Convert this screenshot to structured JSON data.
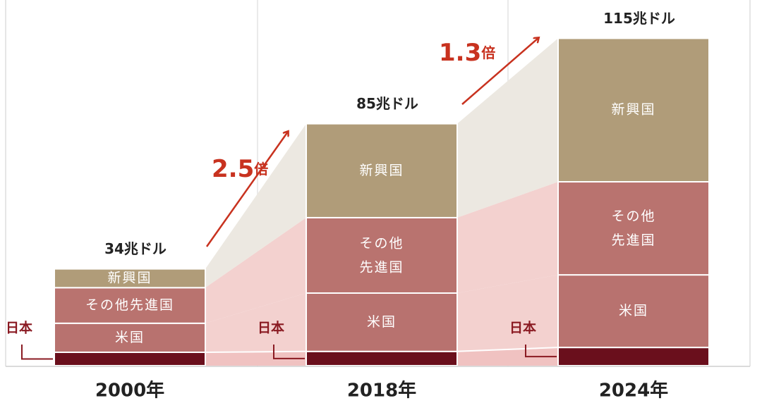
{
  "chart_data": {
    "type": "stacked_bar",
    "categories": [
      "2000年",
      "2018年",
      "2024年"
    ],
    "series": [
      {
        "name": "日本",
        "color": "#6a0f1c",
        "values": [
          4.7,
          5.0,
          6.4
        ]
      },
      {
        "name": "米国",
        "color": "#b8726f",
        "values": [
          10.2,
          20.5,
          25.5
        ]
      },
      {
        "name": "その他先進国",
        "color": "#b9736f",
        "values": [
          12.5,
          26.5,
          32.7
        ]
      },
      {
        "name": "新興国",
        "color": "#b09c79",
        "values": [
          6.6,
          33.0,
          50.4
        ]
      }
    ],
    "totals": [
      34,
      85,
      115
    ],
    "total_labels": [
      "34兆ドル",
      "85兆ドル",
      "115兆ドル"
    ],
    "annotations": [
      {
        "number": "2.5",
        "unit": "倍"
      },
      {
        "number": "1.3",
        "unit": "倍"
      }
    ],
    "ylim": [
      0,
      125
    ]
  }
}
